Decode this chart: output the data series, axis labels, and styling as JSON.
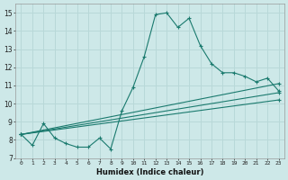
{
  "xlabel": "Humidex (Indice chaleur)",
  "background_color": "#cde8e8",
  "grid_color": "#b8d8d8",
  "line_color": "#1a7a6e",
  "xlim": [
    -0.5,
    23.5
  ],
  "ylim": [
    7,
    15.5
  ],
  "yticks": [
    7,
    8,
    9,
    10,
    11,
    12,
    13,
    14,
    15
  ],
  "xticks": [
    0,
    1,
    2,
    3,
    4,
    5,
    6,
    7,
    8,
    9,
    10,
    11,
    12,
    13,
    14,
    15,
    16,
    17,
    18,
    19,
    20,
    21,
    22,
    23
  ],
  "series1_x": [
    0,
    1,
    2,
    3,
    4,
    5,
    6,
    7,
    8,
    9,
    10,
    11,
    12,
    13,
    14,
    15,
    16,
    17,
    18,
    19,
    20,
    21,
    22,
    23
  ],
  "series1_y": [
    8.3,
    7.7,
    8.9,
    8.1,
    7.8,
    7.6,
    7.6,
    8.1,
    7.5,
    9.6,
    10.9,
    12.6,
    14.9,
    15.0,
    14.2,
    14.7,
    13.2,
    12.2,
    11.7,
    11.7,
    11.5,
    11.2,
    11.4,
    10.7
  ],
  "series2_x": [
    0,
    23
  ],
  "series2_y": [
    8.3,
    11.1
  ],
  "series3_x": [
    0,
    23
  ],
  "series3_y": [
    8.3,
    10.6
  ],
  "series4_x": [
    0,
    23
  ],
  "series4_y": [
    8.3,
    10.2
  ]
}
